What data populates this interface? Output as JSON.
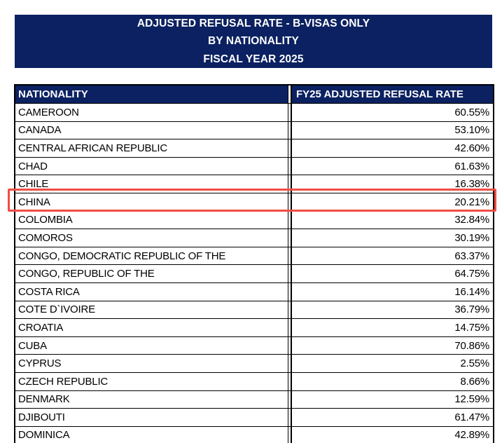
{
  "banner": {
    "lines": [
      "ADJUSTED REFUSAL RATE - B-VISAS ONLY",
      "BY NATIONALITY",
      "FISCAL YEAR 2025"
    ],
    "background_color": "#0b2161",
    "text_color": "#ffffff"
  },
  "table": {
    "columns": [
      "NATIONALITY",
      "FY25 ADJUSTED REFUSAL RATE"
    ],
    "rows": [
      {
        "nationality": "CAMEROON",
        "rate": "60.55%"
      },
      {
        "nationality": "CANADA",
        "rate": "53.10%"
      },
      {
        "nationality": "CENTRAL AFRICAN REPUBLIC",
        "rate": "42.60%"
      },
      {
        "nationality": "CHAD",
        "rate": "61.63%"
      },
      {
        "nationality": "CHILE",
        "rate": "16.38%"
      },
      {
        "nationality": "CHINA",
        "rate": "20.21%"
      },
      {
        "nationality": "COLOMBIA",
        "rate": "32.84%"
      },
      {
        "nationality": "COMOROS",
        "rate": "30.19%"
      },
      {
        "nationality": "CONGO, DEMOCRATIC REPUBLIC OF THE",
        "rate": "63.37%"
      },
      {
        "nationality": "CONGO, REPUBLIC OF THE",
        "rate": "64.75%"
      },
      {
        "nationality": "COSTA RICA",
        "rate": "16.14%"
      },
      {
        "nationality": "COTE D`IVOIRE",
        "rate": "36.79%"
      },
      {
        "nationality": "CROATIA",
        "rate": "14.75%"
      },
      {
        "nationality": "CUBA",
        "rate": "70.86%"
      },
      {
        "nationality": "CYPRUS",
        "rate": "2.55%"
      },
      {
        "nationality": "CZECH REPUBLIC",
        "rate": "8.66%"
      },
      {
        "nationality": "DENMARK",
        "rate": "12.59%"
      },
      {
        "nationality": "DJIBOUTI",
        "rate": "61.47%"
      },
      {
        "nationality": "DOMINICA",
        "rate": "42.89%"
      }
    ]
  },
  "highlight": {
    "country": "CHINA",
    "border_color": "#f04d45"
  }
}
